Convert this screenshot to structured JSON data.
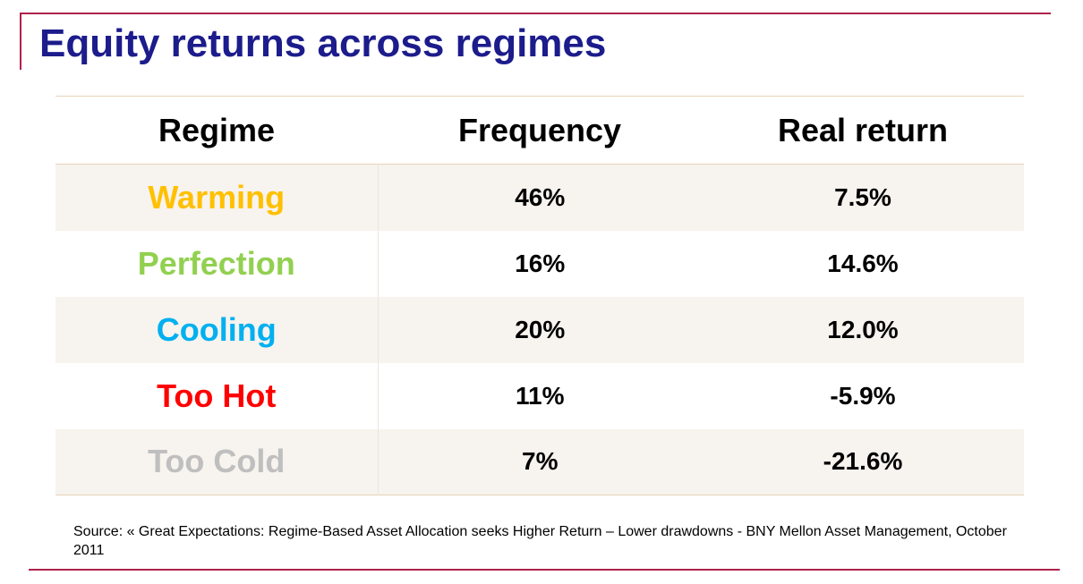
{
  "title": "Equity returns across regimes",
  "table": {
    "headers": {
      "regime": "Regime",
      "frequency": "Frequency",
      "real_return": "Real return"
    },
    "rows": [
      {
        "regime": "Warming",
        "frequency": "46%",
        "real_return": "7.5%",
        "color": "#ffc000"
      },
      {
        "regime": "Perfection",
        "frequency": "16%",
        "real_return": "14.6%",
        "color": "#92d050"
      },
      {
        "regime": "Cooling",
        "frequency": "20%",
        "real_return": "12.0%",
        "color": "#00b0f0"
      },
      {
        "regime": "Too Hot",
        "frequency": "11%",
        "real_return": "-5.9%",
        "color": "#ff0000"
      },
      {
        "regime": "Too Cold",
        "frequency": "7%",
        "real_return": "-21.6%",
        "color": "#bfbfbf"
      }
    ]
  },
  "source": "Source: « Great Expectations: Regime-Based Asset Allocation seeks Higher Return – Lower drawdowns - BNY Mellon Asset Management, October 2011",
  "colors": {
    "title": "#1c1c8c",
    "rule": "#b0224a",
    "shaded_row": "#f7f3ee"
  }
}
